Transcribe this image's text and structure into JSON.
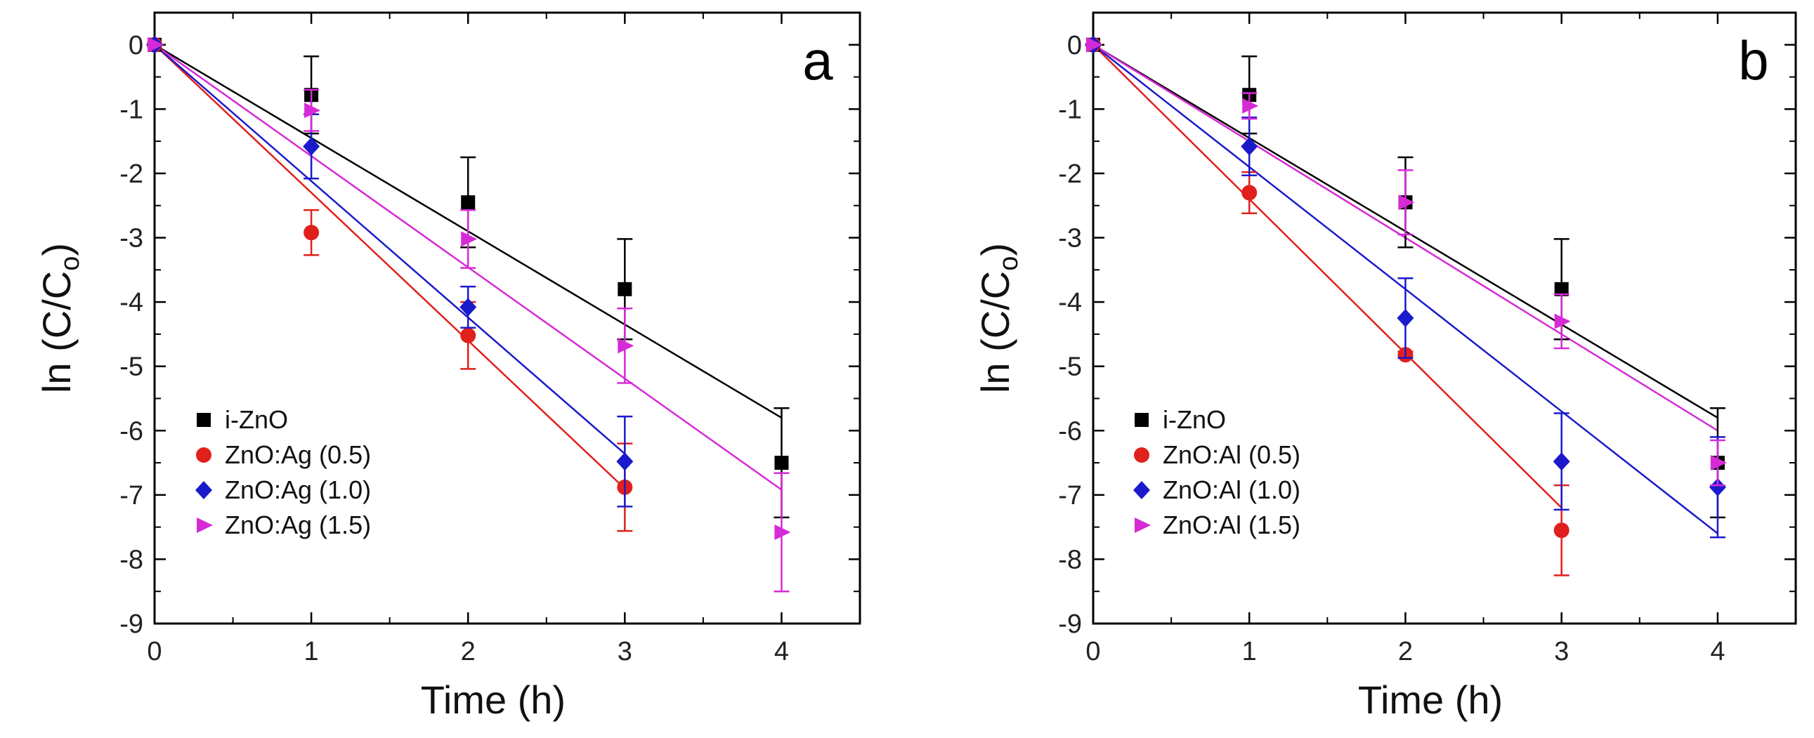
{
  "chart_data": [
    {
      "type": "scatter",
      "panel_label": "a",
      "xlabel": "Time (h)",
      "ylabel": "ln (C/C",
      "ylabel_sub": "o",
      "ylabel_close": ")",
      "xlim": [
        0,
        4.5
      ],
      "ylim": [
        -9,
        0.5
      ],
      "xticks": [
        0,
        1,
        2,
        3,
        4
      ],
      "yticks": [
        0,
        -1,
        -2,
        -3,
        -4,
        -5,
        -6,
        -7,
        -8,
        -9
      ],
      "legend_position": "bottom-left",
      "series": [
        {
          "name": "i-ZnO",
          "color": "#000000",
          "marker": "square",
          "x": [
            0,
            1,
            2,
            3,
            4
          ],
          "y": [
            0,
            -0.78,
            -2.45,
            -3.8,
            -6.5
          ],
          "err": [
            0,
            0.6,
            0.7,
            0.78,
            0.85
          ],
          "slope": -1.45
        },
        {
          "name": "ZnO:Ag (0.5)",
          "color": "#e0201c",
          "marker": "circle",
          "x": [
            0,
            1,
            2,
            3
          ],
          "y": [
            0,
            -2.92,
            -4.52,
            -6.88
          ],
          "err": [
            0,
            0.35,
            0.52,
            0.68
          ],
          "slope": -2.3
        },
        {
          "name": "ZnO:Ag (1.0)",
          "color": "#1a1acc",
          "marker": "diamond",
          "x": [
            0,
            1,
            2,
            3
          ],
          "y": [
            0,
            -1.58,
            -4.08,
            -6.48
          ],
          "err": [
            0,
            0.5,
            0.32,
            0.7
          ],
          "slope": -2.12
        },
        {
          "name": "ZnO:Ag (1.5)",
          "color": "#d62ad6",
          "marker": "triangle-right",
          "x": [
            0,
            1,
            2,
            3,
            4
          ],
          "y": [
            0,
            -1.02,
            -3.02,
            -4.68,
            -7.58
          ],
          "err": [
            0,
            0.32,
            0.45,
            0.58,
            0.92
          ],
          "slope": -1.73
        }
      ]
    },
    {
      "type": "scatter",
      "panel_label": "b",
      "xlabel": "Time (h)",
      "ylabel": "ln (C/C",
      "ylabel_sub": "o",
      "ylabel_close": ")",
      "xlim": [
        0,
        4.5
      ],
      "ylim": [
        -9,
        0.5
      ],
      "xticks": [
        0,
        1,
        2,
        3,
        4
      ],
      "yticks": [
        0,
        -1,
        -2,
        -3,
        -4,
        -5,
        -6,
        -7,
        -8,
        -9
      ],
      "legend_position": "bottom-left",
      "series": [
        {
          "name": "i-ZnO",
          "color": "#000000",
          "marker": "square",
          "x": [
            0,
            1,
            2,
            3,
            4
          ],
          "y": [
            0,
            -0.78,
            -2.45,
            -3.8,
            -6.5
          ],
          "err": [
            0,
            0.6,
            0.7,
            0.78,
            0.85
          ],
          "slope": -1.45
        },
        {
          "name": "ZnO:Al (0.5)",
          "color": "#e0201c",
          "marker": "circle",
          "x": [
            0,
            1,
            2,
            3
          ],
          "y": [
            0,
            -2.3,
            -4.82,
            -7.55
          ],
          "err": [
            0,
            0.32,
            0.05,
            0.7
          ],
          "slope": -2.4
        },
        {
          "name": "ZnO:Al (1.0)",
          "color": "#1a1acc",
          "marker": "diamond",
          "x": [
            0,
            1,
            2,
            3,
            4
          ],
          "y": [
            0,
            -1.58,
            -4.25,
            -6.48,
            -6.88
          ],
          "err": [
            0,
            0.45,
            0.62,
            0.75,
            0.78
          ],
          "slope": -1.9
        },
        {
          "name": "ZnO:Al (1.5)",
          "color": "#d62ad6",
          "marker": "triangle-right",
          "x": [
            0,
            1,
            2,
            3,
            4
          ],
          "y": [
            0,
            -0.95,
            -2.45,
            -4.3,
            -6.5
          ],
          "err": [
            0,
            0.2,
            0.5,
            0.42,
            0.35
          ],
          "slope": -1.5
        }
      ]
    }
  ]
}
